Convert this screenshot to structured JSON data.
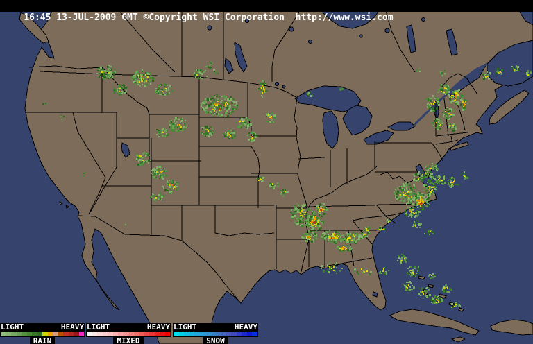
{
  "header": {
    "text": "16:45 13-JUL-2009 GMT ©Copyright WSI Corporation  http://www.wsi.com"
  },
  "colors": {
    "ocean": "#36436C",
    "land": "#7D6C59",
    "border": "#000000",
    "header_bg": "#000000",
    "header_fg": "#FFFFFF"
  },
  "legend": {
    "rain": {
      "label": "RAIN",
      "light": "LIGHT",
      "heavy": "HEAVY",
      "colors": [
        "#94BC7C",
        "#88B470",
        "#78A862",
        "#689C52",
        "#589044",
        "#488436",
        "#387828",
        "#2C6C1C",
        "#CCD400",
        "#ECA400",
        "#D8A070",
        "#BC5000",
        "#C43020",
        "#B42420",
        "#9C1818",
        "#F02CC0"
      ]
    },
    "mixed": {
      "label": "MIXED",
      "light": "LIGHT",
      "heavy": "HEAVY",
      "colors": [
        "#F8F4F4",
        "#F8E8E8",
        "#F8DCDC",
        "#F8D0D0",
        "#F8C4C4",
        "#F8B4B4",
        "#F4A4A4",
        "#F49494",
        "#F48484",
        "#F07070",
        "#F05C5C",
        "#EC4848",
        "#EC3434",
        "#E82020",
        "#E81010",
        "#F00000"
      ]
    },
    "snow": {
      "label": "SNOW",
      "light": "LIGHT",
      "heavy": "HEAVY",
      "colors": [
        "#00E0E8",
        "#00D0E8",
        "#10C0E4",
        "#18B4E0",
        "#20A8DC",
        "#289CD8",
        "#3090D0",
        "#3880C8",
        "#4070C0",
        "#4462BC",
        "#4854B8",
        "#4048BC",
        "#3038C4",
        "#2028CC",
        "#1018D4",
        "#0830E0"
      ]
    }
  },
  "radar": {
    "palette": {
      "green": [
        "#7FB367",
        "#6CA254",
        "#599445",
        "#478736",
        "#367A28",
        "#28661B",
        "#81AD6C"
      ],
      "yellow": [
        "#E4D200",
        "#F0E000",
        "#D8CC00"
      ],
      "orange": [
        "#F0A000",
        "#E08000"
      ],
      "red": "#D22C14",
      "tan": "#D9A472"
    },
    "cell_format": [
      "x",
      "y",
      "rx",
      "ry",
      "green",
      "yellow",
      "orange",
      "red",
      "tan"
    ],
    "cells": [
      [
        152,
        103,
        14,
        10,
        80,
        3,
        0,
        0,
        0
      ],
      [
        205,
        112,
        16,
        12,
        110,
        8,
        1,
        0,
        0
      ],
      [
        172,
        128,
        10,
        8,
        45,
        2,
        0,
        0,
        0
      ],
      [
        235,
        128,
        12,
        9,
        55,
        2,
        0,
        0,
        0
      ],
      [
        288,
        106,
        10,
        7,
        35,
        1,
        0,
        0,
        0
      ],
      [
        255,
        178,
        14,
        11,
        70,
        3,
        1,
        0,
        0
      ],
      [
        232,
        190,
        9,
        7,
        35,
        1,
        0,
        0,
        0
      ],
      [
        298,
        188,
        10,
        8,
        40,
        2,
        0,
        0,
        0
      ],
      [
        330,
        192,
        9,
        7,
        35,
        3,
        1,
        0,
        0
      ],
      [
        362,
        196,
        8,
        7,
        30,
        2,
        1,
        0,
        0
      ],
      [
        378,
        128,
        6,
        14,
        28,
        8,
        2,
        0,
        0
      ],
      [
        388,
        168,
        7,
        10,
        28,
        6,
        1,
        0,
        0
      ],
      [
        300,
        92,
        6,
        5,
        10,
        0,
        0,
        0,
        0
      ],
      [
        310,
        102,
        5,
        4,
        7,
        0,
        0,
        0,
        0
      ],
      [
        315,
        152,
        26,
        16,
        170,
        12,
        4,
        1,
        0
      ],
      [
        350,
        176,
        12,
        8,
        45,
        3,
        0,
        0,
        0
      ],
      [
        205,
        228,
        12,
        10,
        55,
        3,
        0,
        0,
        0
      ],
      [
        228,
        248,
        12,
        10,
        55,
        3,
        1,
        0,
        0
      ],
      [
        245,
        268,
        11,
        10,
        50,
        4,
        1,
        0,
        0
      ],
      [
        225,
        282,
        9,
        7,
        30,
        2,
        0,
        0,
        0
      ],
      [
        374,
        258,
        5,
        4,
        10,
        3,
        0,
        0,
        0
      ],
      [
        394,
        265,
        7,
        5,
        16,
        2,
        0,
        0,
        0
      ],
      [
        408,
        276,
        6,
        5,
        14,
        2,
        0,
        0,
        0
      ],
      [
        432,
        308,
        14,
        16,
        100,
        8,
        2,
        0,
        0
      ],
      [
        452,
        318,
        13,
        15,
        90,
        16,
        9,
        3,
        0
      ],
      [
        462,
        300,
        8,
        8,
        28,
        7,
        4,
        1,
        2
      ],
      [
        445,
        340,
        12,
        8,
        50,
        6,
        2,
        0,
        0
      ],
      [
        478,
        340,
        16,
        9,
        80,
        14,
        4,
        0,
        0
      ],
      [
        505,
        342,
        14,
        8,
        70,
        7,
        1,
        0,
        0
      ],
      [
        525,
        338,
        8,
        5,
        26,
        2,
        0,
        0,
        0
      ],
      [
        495,
        357,
        13,
        5,
        28,
        9,
        4,
        0,
        0
      ],
      [
        528,
        330,
        5,
        4,
        9,
        3,
        0,
        0,
        0
      ],
      [
        548,
        330,
        5,
        4,
        9,
        3,
        0,
        0,
        0
      ],
      [
        560,
        318,
        4,
        3,
        7,
        1,
        0,
        0,
        0
      ],
      [
        480,
        385,
        20,
        8,
        22,
        4,
        0,
        0,
        0
      ],
      [
        520,
        390,
        15,
        6,
        14,
        3,
        0,
        0,
        0
      ],
      [
        552,
        390,
        8,
        5,
        10,
        2,
        0,
        0,
        0
      ],
      [
        578,
        372,
        8,
        6,
        22,
        2,
        0,
        0,
        0
      ],
      [
        595,
        390,
        10,
        8,
        30,
        3,
        0,
        0,
        0
      ],
      [
        588,
        412,
        8,
        7,
        26,
        4,
        0,
        0,
        0
      ],
      [
        610,
        420,
        9,
        7,
        26,
        3,
        0,
        0,
        0
      ],
      [
        628,
        432,
        9,
        7,
        26,
        4,
        1,
        0,
        0
      ],
      [
        642,
        415,
        7,
        6,
        18,
        2,
        0,
        0,
        0
      ],
      [
        622,
        398,
        6,
        5,
        13,
        1,
        0,
        0,
        0
      ],
      [
        655,
        440,
        6,
        5,
        13,
        2,
        0,
        0,
        0
      ],
      [
        585,
        278,
        18,
        16,
        130,
        8,
        2,
        0,
        0
      ],
      [
        605,
        290,
        14,
        12,
        80,
        12,
        6,
        2,
        0
      ],
      [
        618,
        272,
        10,
        10,
        45,
        6,
        2,
        0,
        0
      ],
      [
        592,
        305,
        12,
        8,
        40,
        5,
        2,
        0,
        0
      ],
      [
        612,
        252,
        12,
        9,
        45,
        2,
        0,
        0,
        0
      ],
      [
        632,
        258,
        10,
        7,
        30,
        3,
        0,
        0,
        0
      ],
      [
        652,
        262,
        9,
        7,
        26,
        4,
        1,
        0,
        0
      ],
      [
        668,
        252,
        6,
        5,
        12,
        1,
        0,
        0,
        0
      ],
      [
        622,
        240,
        10,
        6,
        26,
        1,
        0,
        0,
        0
      ],
      [
        600,
        322,
        9,
        6,
        18,
        1,
        0,
        0,
        0
      ],
      [
        618,
        335,
        7,
        5,
        12,
        1,
        0,
        0,
        0
      ],
      [
        600,
        255,
        8,
        6,
        22,
        2,
        0,
        0,
        0
      ],
      [
        622,
        148,
        10,
        12,
        50,
        4,
        0,
        0,
        0
      ],
      [
        638,
        128,
        9,
        8,
        36,
        4,
        0,
        0,
        0
      ],
      [
        655,
        138,
        10,
        12,
        50,
        8,
        2,
        0,
        0
      ],
      [
        668,
        148,
        7,
        10,
        26,
        5,
        3,
        0,
        0
      ],
      [
        645,
        162,
        9,
        9,
        36,
        5,
        0,
        0,
        0
      ],
      [
        630,
        178,
        8,
        8,
        27,
        3,
        0,
        0,
        0
      ],
      [
        650,
        182,
        7,
        6,
        18,
        2,
        0,
        0,
        0
      ],
      [
        700,
        108,
        7,
        6,
        18,
        2,
        0,
        0,
        0
      ],
      [
        718,
        102,
        6,
        5,
        12,
        2,
        1,
        0,
        0
      ],
      [
        740,
        98,
        6,
        5,
        11,
        1,
        0,
        0,
        0
      ],
      [
        760,
        105,
        5,
        5,
        9,
        1,
        0,
        0,
        0
      ],
      [
        445,
        135,
        5,
        4,
        7,
        0,
        0,
        0,
        0
      ],
      [
        490,
        128,
        4,
        3,
        5,
        0,
        0,
        0,
        0
      ],
      [
        638,
        105,
        5,
        4,
        7,
        0,
        0,
        0,
        0
      ],
      [
        602,
        100,
        4,
        3,
        5,
        0,
        0,
        0,
        0
      ],
      [
        62,
        148,
        3,
        3,
        4,
        0,
        0,
        0,
        0
      ],
      [
        88,
        168,
        3,
        3,
        4,
        0,
        0,
        0,
        0
      ],
      [
        120,
        250,
        3,
        3,
        3,
        0,
        0,
        0,
        0
      ],
      [
        180,
        320,
        3,
        3,
        3,
        0,
        0,
        0,
        0
      ]
    ]
  }
}
